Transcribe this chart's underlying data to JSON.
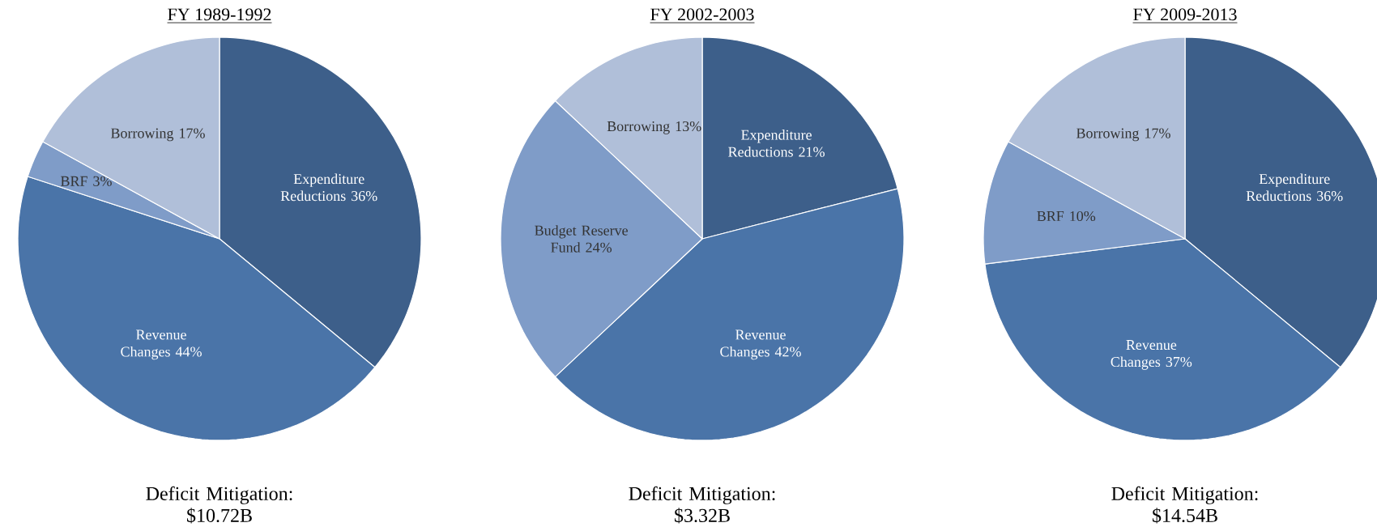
{
  "chart_data": [
    {
      "type": "pie",
      "title": "FY 1989-1992",
      "categories": [
        "Expenditure Reductions",
        "Revenue Changes",
        "BRF",
        "Borrowing"
      ],
      "values": [
        36,
        44,
        3,
        17
      ],
      "value_labels": [
        "36%",
        "44%",
        "3%",
        "17%"
      ],
      "colors": [
        "#3d5f8a",
        "#4a74a8",
        "#7f9cc8",
        "#b0bfd9"
      ],
      "annotations": [
        "Deficit Mitigation: $10.72B"
      ]
    },
    {
      "type": "pie",
      "title": "FY 2002-2003",
      "categories": [
        "Expenditure Reductions",
        "Revenue Changes",
        "Budget Reserve Fund",
        "Borrowing"
      ],
      "values": [
        21,
        42,
        24,
        13
      ],
      "value_labels": [
        "21%",
        "42%",
        "24%",
        "13%"
      ],
      "colors": [
        "#3d5f8a",
        "#4a74a8",
        "#7f9cc8",
        "#b0bfd9"
      ],
      "annotations": [
        "Deficit Mitigation: $3.32B"
      ]
    },
    {
      "type": "pie",
      "title": "FY 2009-2013",
      "categories": [
        "Expenditure Reductions",
        "Revenue Changes",
        "BRF",
        "Borrowing"
      ],
      "values": [
        36,
        37,
        10,
        17
      ],
      "value_labels": [
        "36%",
        "37%",
        "10%",
        "17%"
      ],
      "colors": [
        "#3d5f8a",
        "#4a74a8",
        "#7f9cc8",
        "#b0bfd9"
      ],
      "annotations": [
        "Deficit Mitigation: $14.54B"
      ]
    }
  ]
}
